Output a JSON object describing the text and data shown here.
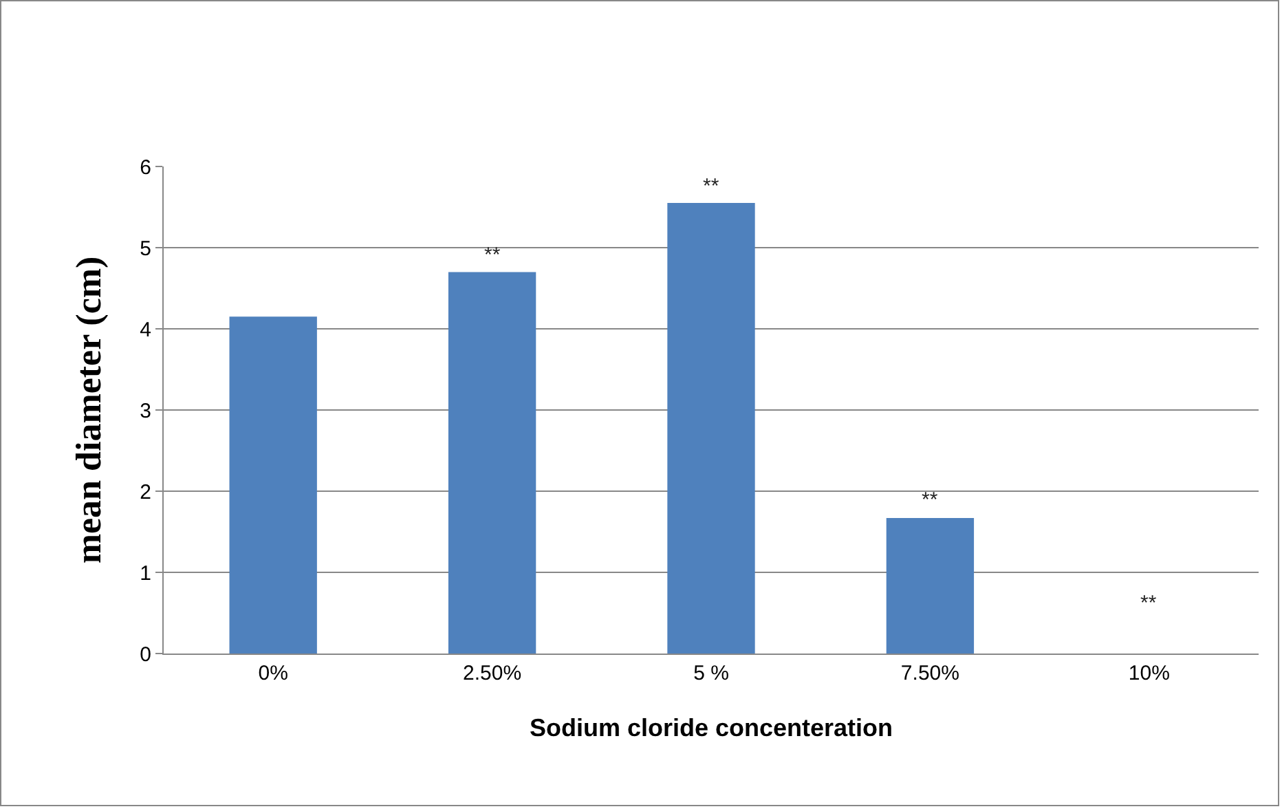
{
  "chart_data": {
    "type": "bar",
    "xlabel": "Sodium cloride concenteration",
    "ylabel": "mean diameter (cm)",
    "categories": [
      "0%",
      "2.50%",
      "5 %",
      "7.50%",
      "10%"
    ],
    "values": [
      4.15,
      4.7,
      5.55,
      1.67,
      0
    ],
    "color": "#4f81bd",
    "ylim": [
      0,
      6
    ],
    "yticks": [
      0,
      1,
      2,
      3,
      4,
      5,
      6
    ],
    "grid": "y",
    "legend": false,
    "annotations": [
      {
        "text": "**",
        "x": "2.50%",
        "y": 4.7
      },
      {
        "text": "**",
        "x": "5 %",
        "y": 5.55
      },
      {
        "text": "**",
        "x": "7.50%",
        "y": 1.67
      },
      {
        "text": "**",
        "x": "10%",
        "y": 0
      }
    ]
  }
}
